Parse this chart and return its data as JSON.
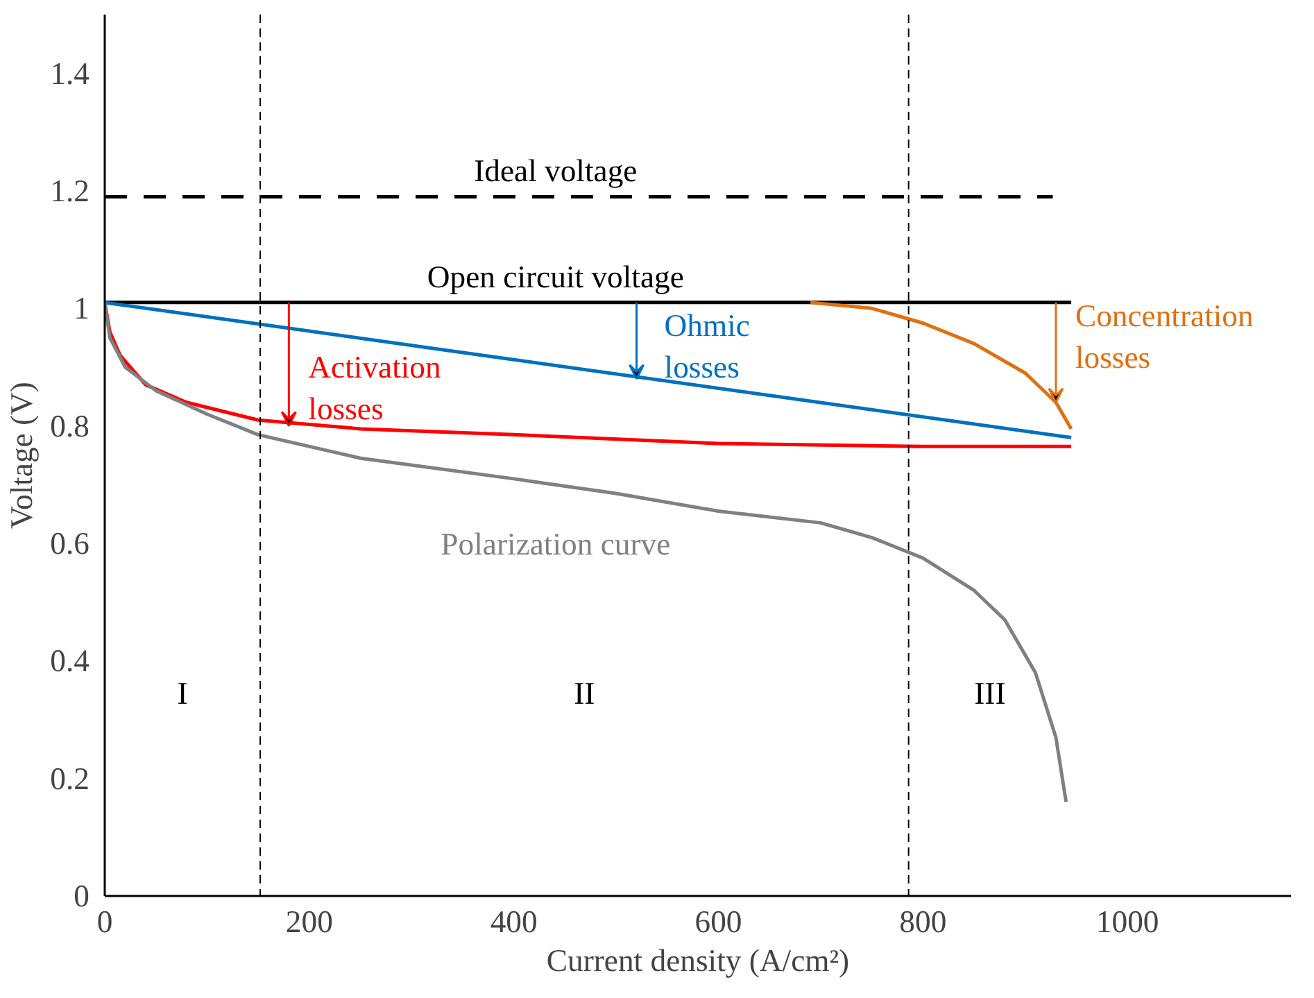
{
  "chart_data": {
    "type": "line",
    "xlabel": "Current density (A/cm²)",
    "ylabel": "Voltage (V)",
    "xlim": [
      0,
      1160
    ],
    "ylim": [
      0,
      1.5
    ],
    "xticks": [
      0,
      200,
      400,
      600,
      800,
      1000
    ],
    "yticks": [
      0,
      0.2,
      0.4,
      0.6,
      0.8,
      1.0,
      1.2,
      1.4
    ],
    "grid": false,
    "series": [
      {
        "name": "Ideal voltage",
        "color": "#000000",
        "line_style": "dashed",
        "x": [
          0,
          927
        ],
        "values": [
          1.19,
          1.19
        ]
      },
      {
        "name": "Open circuit voltage",
        "color": "#000000",
        "x": [
          0,
          945
        ],
        "values": [
          1.01,
          1.01
        ]
      },
      {
        "color": "#ff0000",
        "x": [
          0,
          5,
          15,
          40,
          80,
          150,
          250,
          400,
          600,
          800,
          945
        ],
        "values": [
          1.01,
          0.96,
          0.92,
          0.87,
          0.84,
          0.81,
          0.795,
          0.785,
          0.77,
          0.765,
          0.765
        ]
      },
      {
        "color": "#0070c0",
        "x": [
          0,
          945
        ],
        "values": [
          1.01,
          0.78
        ]
      },
      {
        "color": "#e07010",
        "x": [
          690,
          750,
          800,
          850,
          900,
          930,
          945
        ],
        "values": [
          1.01,
          1.0,
          0.975,
          0.94,
          0.89,
          0.84,
          0.795
        ]
      },
      {
        "name": "Polarization curve",
        "color": "#808080",
        "x": [
          0,
          5,
          20,
          50,
          100,
          150,
          250,
          400,
          500,
          600,
          700,
          750,
          800,
          850,
          880,
          910,
          930,
          940
        ],
        "values": [
          1.01,
          0.95,
          0.9,
          0.86,
          0.82,
          0.785,
          0.745,
          0.71,
          0.685,
          0.655,
          0.635,
          0.61,
          0.575,
          0.52,
          0.47,
          0.38,
          0.27,
          0.16
        ]
      }
    ],
    "ref_lines": [
      {
        "axis": "x",
        "value": 152,
        "color": "#000000",
        "line_style": "dashed"
      },
      {
        "axis": "x",
        "value": 786,
        "color": "#000000",
        "line_style": "dashed"
      }
    ],
    "annotations": [
      {
        "text": "Activation\nlosses",
        "x": 180,
        "y": 0.8
      },
      {
        "text": "Ohmic\nlosses",
        "x": 520,
        "y": 0.88
      },
      {
        "text": "Concentration\nlosses",
        "x": 930,
        "y": 0.84
      },
      "I",
      "II",
      "III"
    ]
  }
}
